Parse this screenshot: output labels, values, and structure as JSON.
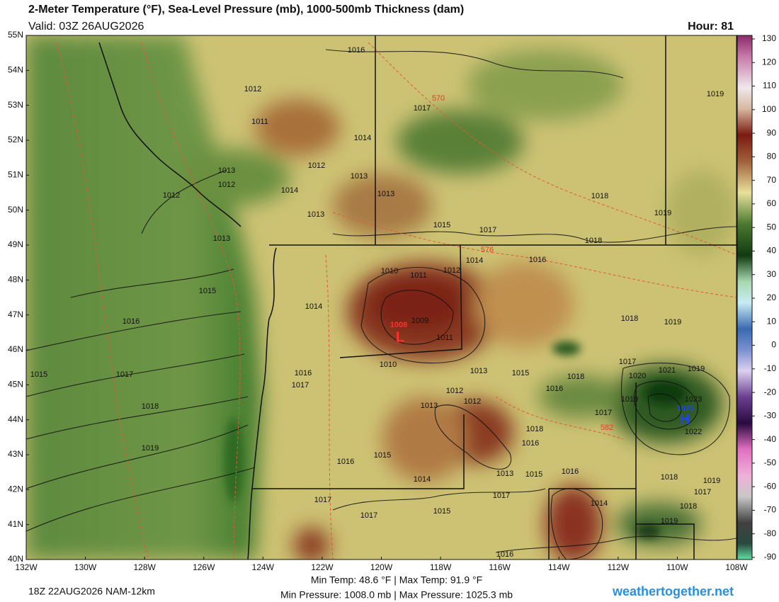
{
  "header": {
    "title": "2-Meter Temperature (°F), Sea-Level Pressure (mb), 1000-500mb Thickness (dam)",
    "valid": "Valid: 03Z 26AUG2026",
    "hour": "Hour: 81"
  },
  "map": {
    "latitude_labels": [
      "55N",
      "54N",
      "53N",
      "52N",
      "51N",
      "50N",
      "49N",
      "48N",
      "47N",
      "46N",
      "45N",
      "44N",
      "43N",
      "42N",
      "41N",
      "40N"
    ],
    "longitude_labels": [
      "132W",
      "130W",
      "128W",
      "126W",
      "124W",
      "122W",
      "120W",
      "118W",
      "116W",
      "114W",
      "112W",
      "110W",
      "108W"
    ],
    "contour_labels": [
      "1016",
      "1012",
      "1017",
      "1011",
      "1014",
      "1012",
      "1013",
      "1013",
      "1012",
      "1014",
      "1013",
      "1012",
      "1013",
      "1015",
      "1017",
      "1018",
      "1019",
      "1019",
      "1018",
      "1013",
      "1014",
      "1016",
      "1010",
      "1011",
      "1012",
      "1015",
      "1014",
      "1009",
      "1011",
      "1016",
      "1018",
      "1019",
      "1010",
      "1013",
      "1015",
      "1016",
      "1017",
      "1015",
      "1017",
      "1018",
      "1017",
      "1020",
      "1021",
      "1019",
      "1016",
      "1012",
      "1019",
      "1023",
      "1013",
      "1012",
      "1018",
      "1017",
      "1022",
      "1018",
      "1016",
      "1019",
      "1015",
      "1016",
      "1016",
      "1015",
      "1013",
      "1014",
      "1018",
      "1019",
      "1017",
      "1017",
      "1017",
      "1014",
      "1018",
      "1015",
      "1017",
      "1019",
      "1016"
    ],
    "thickness_labels": [
      "570",
      "576",
      "582"
    ],
    "low": {
      "pressure": "1008",
      "marker": "L"
    },
    "high": {
      "pressure": "1025",
      "marker": "H"
    }
  },
  "colorbar": {
    "range": [
      -90,
      130
    ],
    "ticks": [
      130,
      120,
      110,
      100,
      90,
      80,
      70,
      60,
      50,
      40,
      30,
      20,
      10,
      0,
      -10,
      -20,
      -30,
      -40,
      -50,
      -60,
      -70,
      -80,
      -90
    ]
  },
  "footer": {
    "run": "18Z 22AUG2026 NAM-12km",
    "temperature": "Min Temp:  48.6 °F | Max Temp:  91.9 °F",
    "pressure": "Min Pressure: 1008.0 mb | Max Pressure: 1025.3 mb",
    "site": "weathertogether.net"
  }
}
